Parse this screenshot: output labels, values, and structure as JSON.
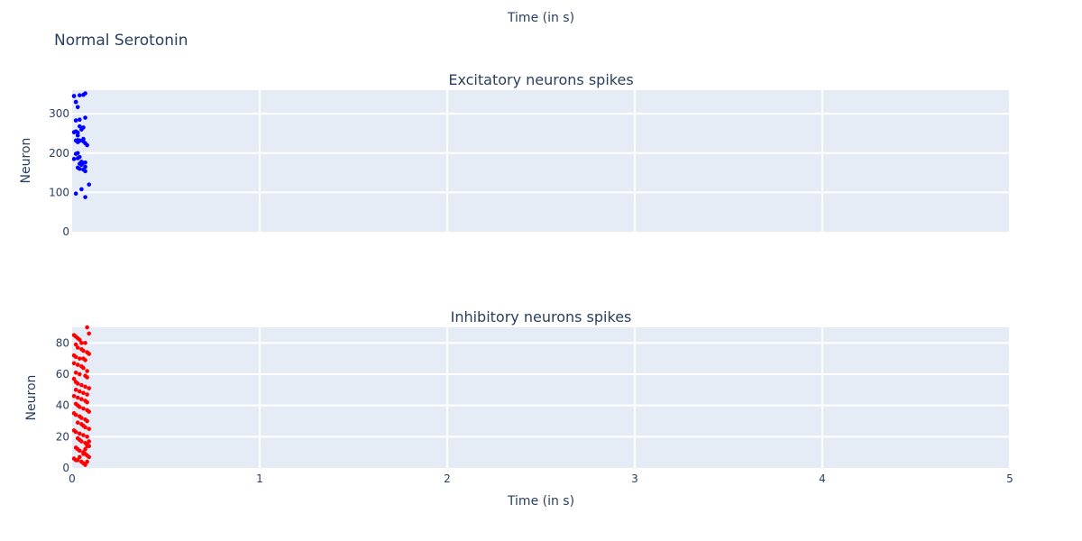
{
  "figure": {
    "title": "Normal Serotonin",
    "top_xlabel": "Time (in s)",
    "background": "#ffffff",
    "plot_bg": "#e5ecf6",
    "grid_color": "#ffffff",
    "text_color": "#2a3f5f"
  },
  "chart_data": [
    {
      "type": "scatter",
      "title": "Excitatory neurons spikes",
      "xlabel": "",
      "ylabel": "Neuron",
      "xlim": [
        0,
        5
      ],
      "ylim": [
        0,
        360
      ],
      "xticks": [
        0,
        1,
        2,
        3,
        4,
        5
      ],
      "yticks": [
        0,
        100,
        200,
        300
      ],
      "grid": true,
      "color": "#0000ff",
      "x": [
        0.01,
        0.02,
        0.04,
        0.06,
        0.07,
        0.02,
        0.03,
        0.01,
        0.04,
        0.02,
        0.07,
        0.04,
        0.06,
        0.02,
        0.03,
        0.05,
        0.04,
        0.02,
        0.06,
        0.03,
        0.07,
        0.03,
        0.01,
        0.03,
        0.04,
        0.06,
        0.08,
        0.02,
        0.03,
        0.04,
        0.06,
        0.07,
        0.05,
        0.04,
        0.01,
        0.03,
        0.05,
        0.07,
        0.03,
        0.04,
        0.06,
        0.07,
        0.09,
        0.05,
        0.02,
        0.07
      ],
      "y": [
        345,
        330,
        347,
        348,
        352,
        330,
        317,
        345,
        285,
        283,
        290,
        268,
        265,
        255,
        252,
        260,
        232,
        232,
        230,
        228,
        225,
        245,
        253,
        233,
        231,
        236,
        220,
        198,
        200,
        190,
        175,
        176,
        178,
        173,
        185,
        187,
        170,
        165,
        163,
        160,
        158,
        154,
        120,
        108,
        97,
        88
      ]
    },
    {
      "type": "scatter",
      "title": "Inhibitory neurons spikes",
      "xlabel": "Time (in s)",
      "ylabel": "Neuron",
      "xlim": [
        0,
        5
      ],
      "ylim": [
        0,
        90
      ],
      "xticks": [
        0,
        1,
        2,
        3,
        4,
        5
      ],
      "yticks": [
        0,
        20,
        40,
        60,
        80
      ],
      "grid": true,
      "color": "#ff0000",
      "x": [
        0.08,
        0.09,
        0.01,
        0.02,
        0.03,
        0.04,
        0.05,
        0.07,
        0.02,
        0.03,
        0.05,
        0.06,
        0.08,
        0.09,
        0.01,
        0.02,
        0.04,
        0.06,
        0.07,
        0.01,
        0.03,
        0.05,
        0.06,
        0.08,
        0.02,
        0.04,
        0.07,
        0.08,
        0.01,
        0.02,
        0.03,
        0.05,
        0.07,
        0.09,
        0.02,
        0.04,
        0.06,
        0.08,
        0.01,
        0.03,
        0.05,
        0.07,
        0.08,
        0.02,
        0.03,
        0.04,
        0.06,
        0.08,
        0.09,
        0.01,
        0.02,
        0.04,
        0.05,
        0.07,
        0.08,
        0.03,
        0.05,
        0.06,
        0.07,
        0.09,
        0.01,
        0.02,
        0.04,
        0.06,
        0.08,
        0.03,
        0.04,
        0.05,
        0.07,
        0.08,
        0.09,
        0.02,
        0.03,
        0.04,
        0.06,
        0.07,
        0.08,
        0.09,
        0.01,
        0.03,
        0.05,
        0.06,
        0.07,
        0.08,
        0.02,
        0.04,
        0.06,
        0.07,
        0.08,
        0.09
      ],
      "y": [
        90,
        86,
        85,
        84,
        83,
        82,
        80,
        80,
        79,
        77,
        76,
        75,
        74,
        73,
        72,
        71,
        70,
        70,
        69,
        67,
        66,
        65,
        64,
        62,
        61,
        60,
        59,
        58,
        57,
        55,
        54,
        53,
        52,
        51,
        50,
        49,
        48,
        47,
        46,
        45,
        44,
        43,
        42,
        41,
        40,
        39,
        38,
        37,
        36,
        35,
        34,
        33,
        32,
        31,
        30,
        29,
        28,
        27,
        26,
        25,
        24,
        23,
        22,
        21,
        20,
        19,
        18,
        17,
        16,
        15,
        14,
        13,
        12,
        11,
        10,
        9,
        8,
        7,
        6,
        5,
        4,
        3,
        2,
        4,
        5,
        7,
        9,
        12,
        14,
        17
      ]
    }
  ]
}
